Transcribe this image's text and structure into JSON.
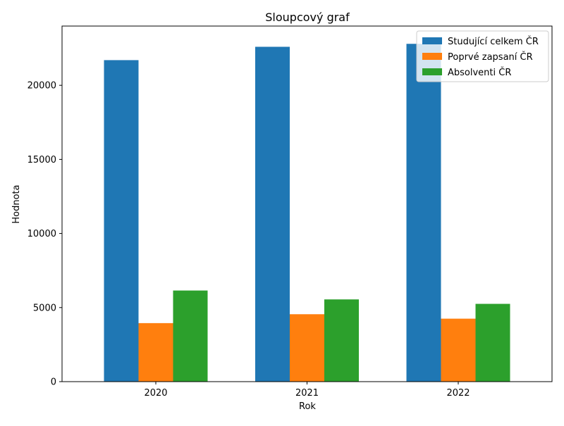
{
  "chart_data": {
    "type": "bar",
    "title": "Sloupcový graf",
    "xlabel": "Rok",
    "ylabel": "Hodnota",
    "categories": [
      "2020",
      "2021",
      "2022"
    ],
    "series": [
      {
        "name": "Studující celkem ČR",
        "color": "#1f77b4",
        "values": [
          21700,
          22600,
          22800
        ]
      },
      {
        "name": "Poprvé zapsaní ČR",
        "color": "#ff7f0e",
        "values": [
          3950,
          4550,
          4250
        ]
      },
      {
        "name": "Absolventi ČR",
        "color": "#2ca02c",
        "values": [
          6150,
          5550,
          5250
        ]
      }
    ],
    "ylim": [
      0,
      24000
    ],
    "yticks": [
      "0",
      "5000",
      "10000",
      "15000",
      "20000"
    ],
    "grid": false,
    "legend_position": "top-right"
  }
}
